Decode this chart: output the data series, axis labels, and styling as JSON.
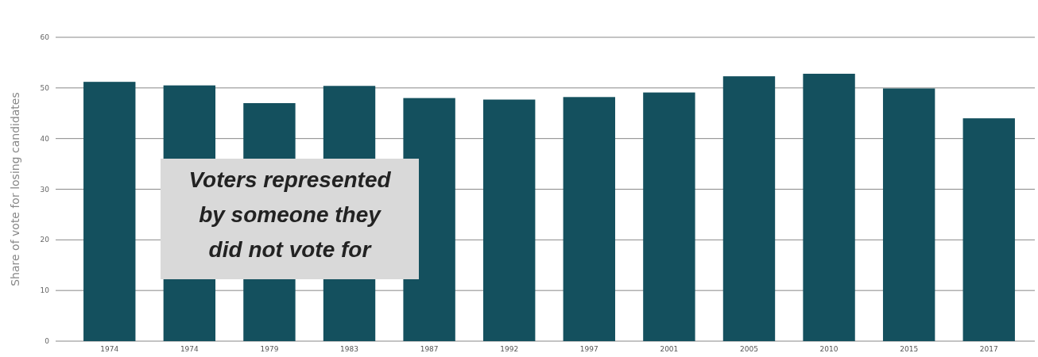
{
  "chart_data": {
    "type": "bar",
    "ylabel": "Share of vote for losing candidates",
    "categories": [
      "1974",
      "1974",
      "1979",
      "1983",
      "1987",
      "1992",
      "1997",
      "2001",
      "2005",
      "2010",
      "2015",
      "2017"
    ],
    "values": [
      51.2,
      50.5,
      47.0,
      50.4,
      48.0,
      47.7,
      48.2,
      49.1,
      52.3,
      52.8,
      49.9,
      44.0
    ],
    "color": "#14505e",
    "ylim": [
      0,
      60
    ],
    "yticks": [
      0,
      10,
      20,
      30,
      40,
      50,
      60
    ],
    "grid": "y",
    "annotations": [
      "Voters represented by someone they did not vote for"
    ]
  }
}
